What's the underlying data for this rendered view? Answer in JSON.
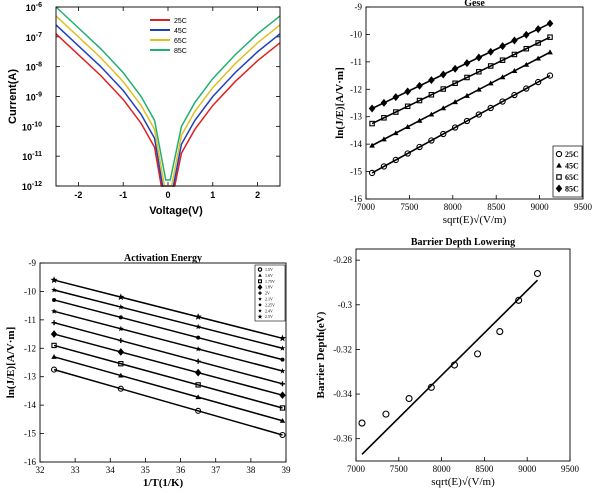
{
  "chart_data": [
    {
      "type": "line",
      "title": "",
      "xlabel": "Voltage(V)",
      "ylabel": "Current(A)",
      "xlim": [
        -2.5,
        2.5
      ],
      "ylim_log10": [
        -12,
        -6
      ],
      "log_y": true,
      "xticks": [
        "-2",
        "-1",
        "0",
        "1",
        "2"
      ],
      "yticks": [
        "10^-12",
        "10^-11",
        "10^-10",
        "10^-9",
        "10^-8",
        "10^-7",
        "10^-6"
      ],
      "legend_position": "top-center",
      "series": [
        {
          "name": "25C",
          "color": "#e02020",
          "x": [
            -2.5,
            -2,
            -1.5,
            -1,
            -0.6,
            -0.3,
            -0.15,
            0.15,
            0.3,
            0.6,
            1,
            1.5,
            2,
            2.5
          ],
          "y_log10": [
            -6.9,
            -7.6,
            -8.3,
            -9.1,
            -9.9,
            -10.7,
            -12,
            -12,
            -10.9,
            -10.1,
            -9.3,
            -8.5,
            -7.8,
            -7.2
          ]
        },
        {
          "name": "45C",
          "color": "#1f3fbf",
          "x": [
            -2.5,
            -2,
            -1.5,
            -1,
            -0.6,
            -0.3,
            -0.12,
            0.12,
            0.3,
            0.6,
            1,
            1.5,
            2,
            2.5
          ],
          "y_log10": [
            -6.6,
            -7.3,
            -8.0,
            -8.8,
            -9.6,
            -10.4,
            -12,
            -12,
            -10.6,
            -9.8,
            -9.0,
            -8.2,
            -7.5,
            -6.9
          ]
        },
        {
          "name": "65C",
          "color": "#e0c020",
          "x": [
            -2.5,
            -2,
            -1.5,
            -1,
            -0.6,
            -0.3,
            -0.08,
            0.08,
            0.3,
            0.6,
            1,
            1.5,
            2,
            2.5
          ],
          "y_log10": [
            -6.3,
            -7.0,
            -7.7,
            -8.5,
            -9.3,
            -10.1,
            -12,
            -12,
            -10.3,
            -9.5,
            -8.7,
            -7.9,
            -7.2,
            -6.6
          ]
        },
        {
          "name": "85C",
          "color": "#20b070",
          "x": [
            -2.5,
            -2,
            -1.5,
            -1,
            -0.6,
            -0.3,
            -0.05,
            0.05,
            0.3,
            0.6,
            1,
            1.5,
            2,
            2.5
          ],
          "y_log10": [
            -6.0,
            -6.7,
            -7.4,
            -8.2,
            -9.0,
            -9.8,
            -11.8,
            -11.8,
            -10.0,
            -9.2,
            -8.4,
            -7.6,
            -6.9,
            -6.3
          ]
        }
      ]
    },
    {
      "type": "scatter",
      "title": "Gese",
      "xlabel": "sqrt(E)√(V/m)",
      "ylabel": "ln(J/E)[A/V·m]",
      "xlim": [
        7000,
        9500
      ],
      "ylim": [
        -16,
        -9
      ],
      "xticks": [
        "7000",
        "7500",
        "8000",
        "8500",
        "9000",
        "9500"
      ],
      "yticks": [
        "-16",
        "-15",
        "-14",
        "-13",
        "-12",
        "-11",
        "-10",
        "-9"
      ],
      "legend_position": "bottom-right",
      "series": [
        {
          "name": "25C",
          "marker": "circle",
          "x_start": 7070,
          "x_end": 9120,
          "y_start": -15.05,
          "y_end": -11.5
        },
        {
          "name": "45C",
          "marker": "triangle",
          "x_start": 7070,
          "x_end": 9120,
          "y_start": -14.05,
          "y_end": -10.65
        },
        {
          "name": "65C",
          "marker": "square",
          "x_start": 7070,
          "x_end": 9120,
          "y_start": -13.25,
          "y_end": -10.1
        },
        {
          "name": "85C",
          "marker": "diamond",
          "x_start": 7070,
          "x_end": 9120,
          "y_start": -12.7,
          "y_end": -9.6
        }
      ]
    },
    {
      "type": "scatter",
      "title": "Activation Energy",
      "xlabel": "1/T(1/K)",
      "ylabel": "ln(J/E)[A/V·m]",
      "xlim": [
        32,
        39
      ],
      "ylim": [
        -16,
        -9
      ],
      "xticks": [
        "32",
        "33",
        "34",
        "35",
        "36",
        "37",
        "38",
        "39"
      ],
      "yticks": [
        "-16",
        "-15",
        "-14",
        "-13",
        "-12",
        "-11",
        "-10",
        "-9"
      ],
      "legend_position": "top-right",
      "x_points": [
        32.4,
        34.3,
        36.5,
        38.9
      ],
      "series": [
        {
          "name": "1.5V",
          "marker": "circle",
          "y_start": -12.75,
          "y_end": -15.05
        },
        {
          "name": "1.6V",
          "marker": "triangle",
          "y_start": -12.3,
          "y_end": -14.55
        },
        {
          "name": "1.75V",
          "marker": "square",
          "y_start": -11.9,
          "y_end": -14.1
        },
        {
          "name": "1.8V",
          "marker": "diamond",
          "y_start": -11.5,
          "y_end": -13.65
        },
        {
          "name": "2V",
          "marker": "plus",
          "y_start": -11.1,
          "y_end": -13.25
        },
        {
          "name": "2.1V",
          "marker": "star",
          "y_start": -10.7,
          "y_end": -12.8
        },
        {
          "name": "2.25V",
          "marker": "dot",
          "y_start": -10.3,
          "y_end": -12.4
        },
        {
          "name": "2.4V",
          "marker": "hexstar",
          "y_start": -9.95,
          "y_end": -12.0
        },
        {
          "name": "2.5V",
          "marker": "bigstar",
          "y_start": -9.6,
          "y_end": -11.65
        }
      ]
    },
    {
      "type": "scatter",
      "title": "Barrier Depth Lowering",
      "xlabel": "sqrt(E)√(V/m)",
      "ylabel": "Barrier Depth(eV)",
      "xlim": [
        7000,
        9500
      ],
      "ylim": [
        -0.37,
        -0.275
      ],
      "xticks": [
        "7000",
        "7500",
        "8000",
        "8500",
        "9000",
        "9500"
      ],
      "yticks": [
        "-0.36",
        "-0.34",
        "-0.32",
        "-0.3",
        "-0.28"
      ],
      "points": {
        "x": [
          7070,
          7350,
          7620,
          7880,
          8150,
          8420,
          8680,
          8900,
          9120
        ],
        "y": [
          -0.353,
          -0.349,
          -0.342,
          -0.337,
          -0.327,
          -0.322,
          -0.312,
          -0.298,
          -0.286
        ]
      },
      "fit_line": {
        "x": [
          7070,
          9120
        ],
        "y": [
          -0.367,
          -0.289
        ]
      }
    }
  ]
}
